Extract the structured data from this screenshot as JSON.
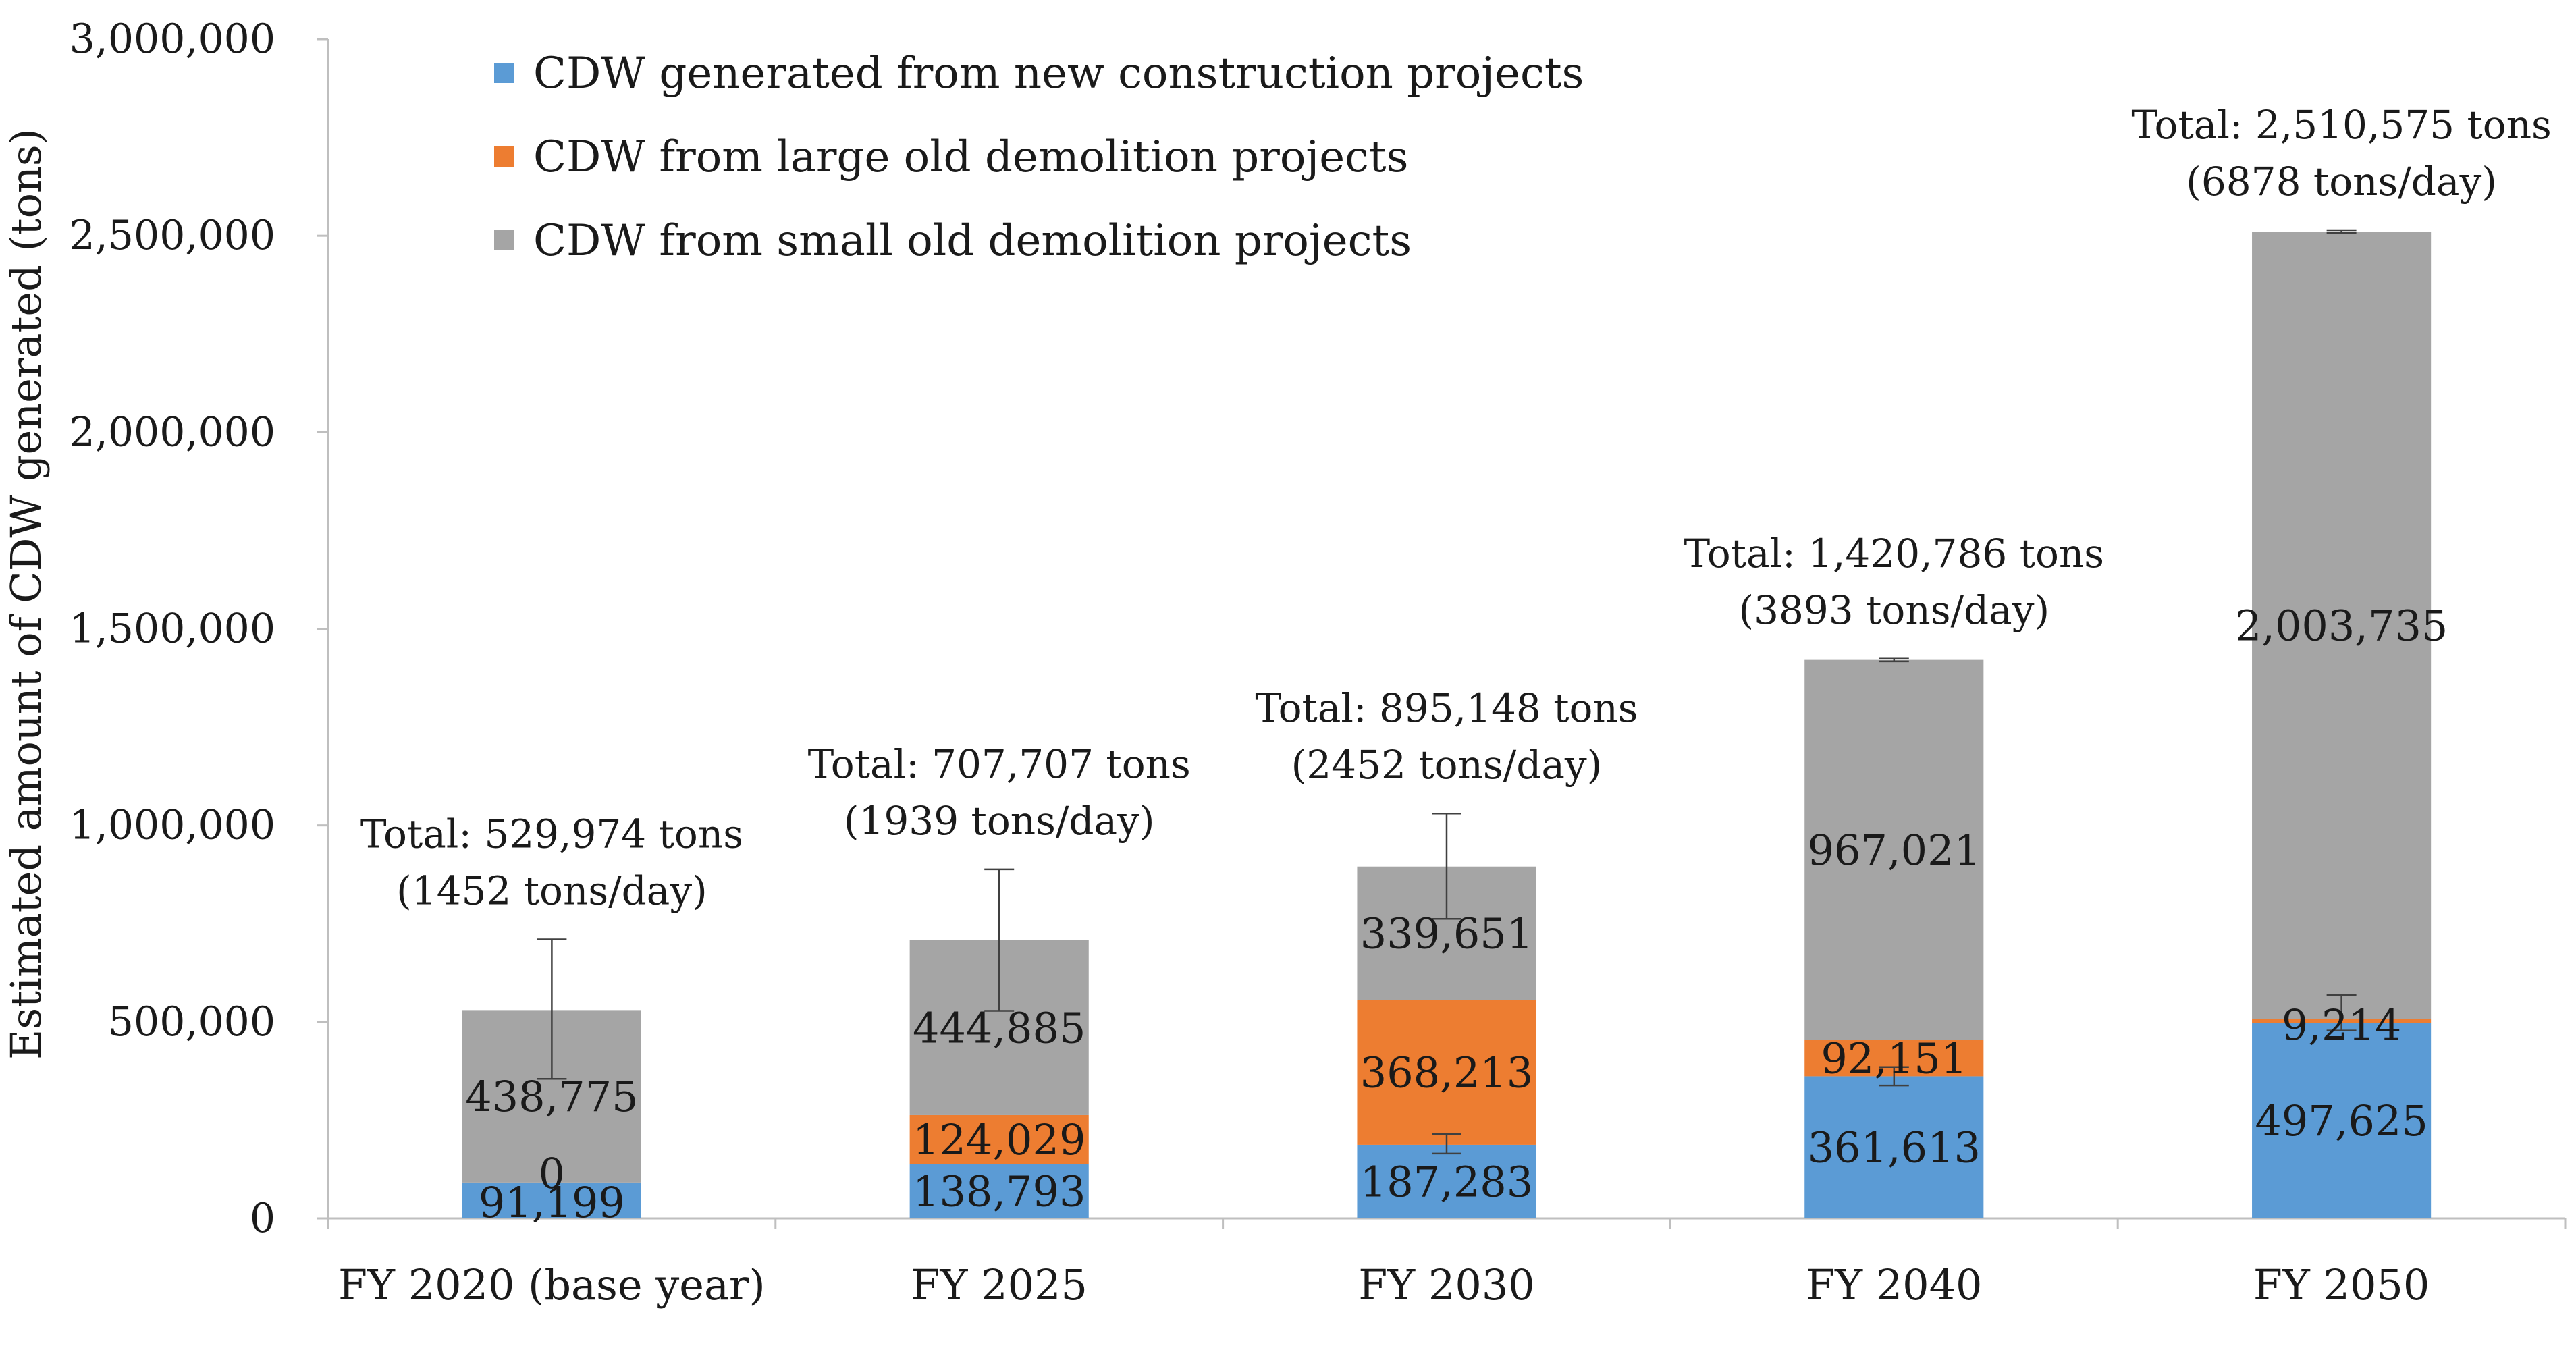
{
  "chart_data": {
    "type": "bar",
    "stacked": true,
    "title": "",
    "xlabel": "",
    "ylabel": "Estimated amount of CDW generated (tons)",
    "ylim": [
      0,
      3000000
    ],
    "yticks": [
      0,
      500000,
      1000000,
      1500000,
      2000000,
      2500000,
      3000000
    ],
    "ytick_labels": [
      "0",
      "500,000",
      "1,000,000",
      "1,500,000",
      "2,000,000",
      "2,500,000",
      "3,000,000"
    ],
    "categories": [
      "FY 2020 (base year)",
      "FY 2025",
      "FY 2030",
      "FY 2040",
      "FY 2050"
    ],
    "legend_position": "top-left",
    "series": [
      {
        "name": "CDW generated from new construction projects",
        "color": "#5b9bd5",
        "values": [
          91199,
          138793,
          187283,
          361613,
          497625
        ],
        "labels": [
          "91,199",
          "138,793",
          "187,283",
          "361,613",
          "497,625"
        ],
        "label_color": [
          "#1a1a1a",
          "#1a1a1a",
          "#1a1a1a",
          "#1a1a1a",
          "#ffffff"
        ]
      },
      {
        "name": "CDW from large old demolition projects",
        "color": "#ed7d31",
        "values": [
          0,
          124029,
          368213,
          92151,
          9214
        ],
        "labels": [
          "0",
          "124,029",
          "368,213",
          "92,151",
          "9,214"
        ],
        "label_color": [
          "#1a1a1a",
          "#1a1a1a",
          "#1a1a1a",
          "#1a1a1a",
          "#1a1a1a"
        ]
      },
      {
        "name": "CDW from small old demolition projects",
        "color": "#a5a5a5",
        "values": [
          438775,
          444885,
          339651,
          967021,
          2003735
        ],
        "labels": [
          "438,775",
          "444,885",
          "339,651",
          "967,021",
          "2,003,735"
        ],
        "label_color": [
          "#1a1a1a",
          "#1a1a1a",
          "#1a1a1a",
          "#1a1a1a",
          "#1a1a1a"
        ]
      }
    ],
    "totals": [
      {
        "line1": "Total: 529,974 tons",
        "line2": "(1452 tons/day)",
        "value": 529974
      },
      {
        "line1": "Total: 707,707 tons",
        "line2": "(1939 tons/day)",
        "value": 707707
      },
      {
        "line1": "Total: 895,148 tons",
        "line2": "(2452 tons/day)",
        "value": 895148
      },
      {
        "line1": "Total: 1,420,786 tons",
        "line2": "(3893 tons/day)",
        "value": 1420786
      },
      {
        "line1": "Total: 2,510,575 tons",
        "line2": "(6878 tons/day)",
        "value": 2510575
      }
    ],
    "error_bars": [
      [
        {
          "series": 0,
          "center": 91199,
          "low": 91199,
          "high": 91199
        },
        {
          "series": 2,
          "center": 529974,
          "low": 355000,
          "high": 710000
        }
      ],
      [
        {
          "series": 0,
          "center": 138793,
          "low": 138793,
          "high": 138793
        },
        {
          "series": 2,
          "center": 707707,
          "low": 528000,
          "high": 888000
        }
      ],
      [
        {
          "series": 0,
          "center": 187283,
          "low": 165000,
          "high": 215000
        },
        {
          "series": 2,
          "center": 895148,
          "low": 762000,
          "high": 1030000
        }
      ],
      [
        {
          "series": 0,
          "center": 361613,
          "low": 338000,
          "high": 385000
        },
        {
          "series": 2,
          "center": 1420786,
          "low": 1417000,
          "high": 1424000
        }
      ],
      [
        {
          "series": 0,
          "center": 506839,
          "low": 478000,
          "high": 568000
        },
        {
          "series": 2,
          "center": 2510575,
          "low": 2507000,
          "high": 2514000
        }
      ]
    ]
  }
}
